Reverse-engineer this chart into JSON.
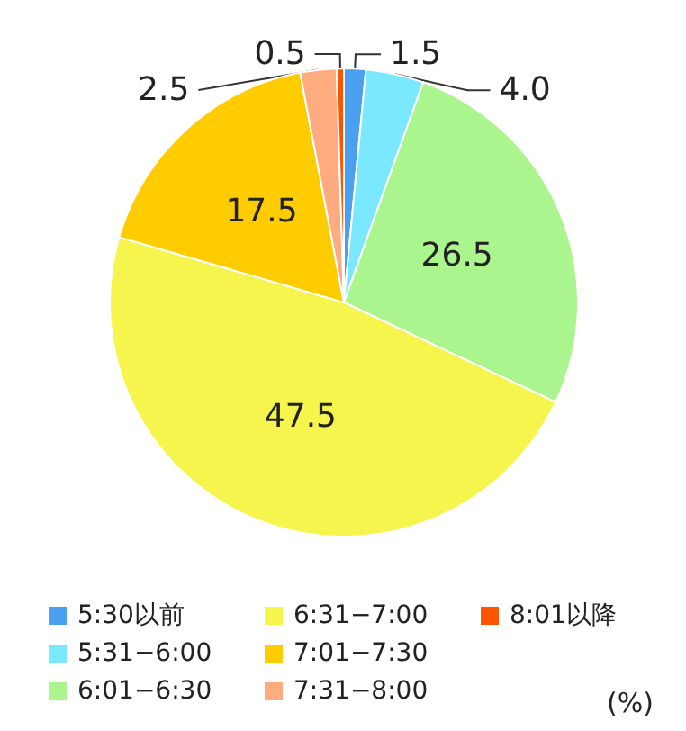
{
  "chart_data": {
    "type": "pie",
    "categories": [
      "5:30以前",
      "5:31−6:00",
      "6:01−6:30",
      "6:31−7:00",
      "7:01−7:30",
      "7:31−8:00",
      "8:01以降"
    ],
    "values": [
      1.5,
      4.0,
      26.5,
      47.5,
      17.5,
      2.5,
      0.5
    ],
    "colors": [
      "#4a9ff0",
      "#7ae8ff",
      "#abf58e",
      "#f5f54d",
      "#ffcc00",
      "#ffab80",
      "#ff5500"
    ],
    "value_labels": [
      "1.5",
      "4.0",
      "26.5",
      "47.5",
      "17.5",
      "2.5",
      "0.5"
    ],
    "legend": "bottom",
    "annotations": [
      "(%)"
    ]
  }
}
